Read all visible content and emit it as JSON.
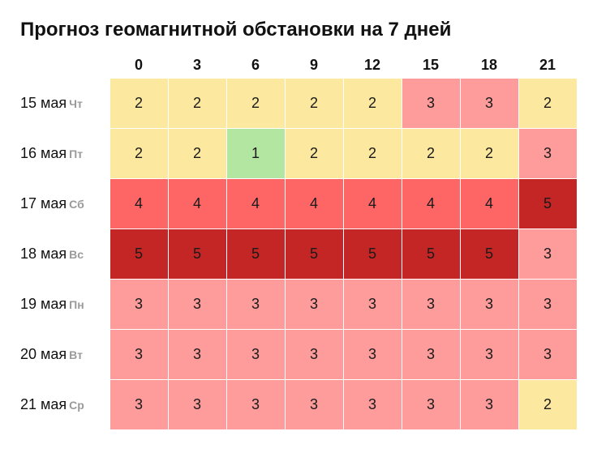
{
  "title": "Прогноз геомагнитной обстановки на 7 дней",
  "chart_data": {
    "type": "heatmap",
    "title": "Прогноз геомагнитной обстановки на 7 дней",
    "x": [
      "0",
      "3",
      "6",
      "9",
      "12",
      "15",
      "18",
      "21"
    ],
    "rows": [
      {
        "date": "15 мая",
        "dow": "Чт",
        "values": [
          2,
          2,
          2,
          2,
          2,
          3,
          3,
          2
        ]
      },
      {
        "date": "16 мая",
        "dow": "Пт",
        "values": [
          2,
          2,
          1,
          2,
          2,
          2,
          2,
          3
        ]
      },
      {
        "date": "17 мая",
        "dow": "Сб",
        "values": [
          4,
          4,
          4,
          4,
          4,
          4,
          4,
          5
        ]
      },
      {
        "date": "18 мая",
        "dow": "Вс",
        "values": [
          5,
          5,
          5,
          5,
          5,
          5,
          5,
          3
        ]
      },
      {
        "date": "19 мая",
        "dow": "Пн",
        "values": [
          3,
          3,
          3,
          3,
          3,
          3,
          3,
          3
        ]
      },
      {
        "date": "20 мая",
        "dow": "Вт",
        "values": [
          3,
          3,
          3,
          3,
          3,
          3,
          3,
          3
        ]
      },
      {
        "date": "21 мая",
        "dow": "Ср",
        "values": [
          3,
          3,
          3,
          3,
          3,
          3,
          3,
          2
        ]
      }
    ],
    "colors": {
      "1": "#b3e6a0",
      "2": "#fde8a0",
      "3": "#fe9c9c",
      "4": "#fe6666",
      "5": "#c42525"
    }
  }
}
